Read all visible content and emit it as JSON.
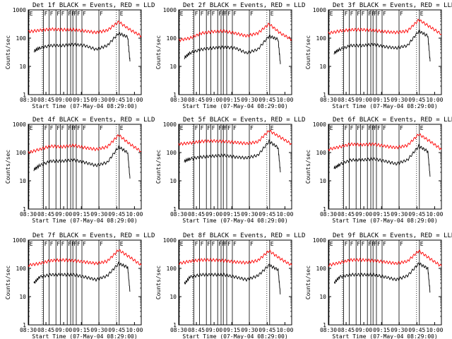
{
  "chart_data": [
    {
      "type": "line",
      "title": "Det 1f BLACK = Events, RED = LLD",
      "xlabel": "Start Time (07-May-04 08:29:00)",
      "ylabel": "Counts/sec",
      "yscale": "log",
      "ylim": [
        1,
        1000
      ],
      "xticks": [
        "08:30",
        "08:45",
        "09:00",
        "09:15",
        "09:30",
        "09:45",
        "10:00"
      ],
      "yticks": [
        "1",
        "10",
        "100",
        "1000"
      ],
      "flags": [
        "E",
        "F",
        "F",
        "F",
        "F",
        "F",
        "F",
        "F",
        "F",
        "F",
        "F",
        "E"
      ],
      "series": [
        {
          "name": "LLD",
          "color": "#ff0000",
          "x": [
            0,
            10,
            20,
            30,
            40,
            50,
            60,
            70,
            80,
            90,
            100
          ],
          "y": [
            170,
            190,
            210,
            200,
            200,
            180,
            160,
            190,
            380,
            200,
            120
          ]
        },
        {
          "name": "Events",
          "color": "#000000",
          "x": [
            5,
            10,
            20,
            30,
            40,
            50,
            60,
            70,
            80,
            88,
            90
          ],
          "y": [
            35,
            45,
            55,
            55,
            60,
            55,
            40,
            55,
            150,
            110,
            15
          ]
        }
      ]
    },
    {
      "type": "line",
      "title": "Det 2f BLACK = Events, RED = LLD",
      "xlabel": "Start Time (07-May-04 08:29:00)",
      "ylabel": "Counts/sec",
      "yscale": "log",
      "ylim": [
        1,
        1000
      ],
      "xticks": [
        "08:30",
        "08:45",
        "09:00",
        "09:15",
        "09:30",
        "09:45",
        "10:00"
      ],
      "yticks": [
        "1",
        "10",
        "100",
        "1000"
      ],
      "flags": [
        "E",
        "F",
        "F",
        "F",
        "F",
        "F",
        "F",
        "F",
        "F",
        "F",
        "F",
        "E"
      ],
      "series": [
        {
          "name": "LLD",
          "color": "#ff0000",
          "x": [
            0,
            10,
            20,
            30,
            40,
            50,
            60,
            70,
            80,
            90,
            100
          ],
          "y": [
            85,
            100,
            150,
            170,
            180,
            150,
            120,
            150,
            320,
            150,
            90
          ]
        },
        {
          "name": "Events",
          "color": "#000000",
          "x": [
            5,
            10,
            20,
            30,
            40,
            50,
            60,
            70,
            80,
            88,
            90
          ],
          "y": [
            20,
            30,
            40,
            45,
            48,
            45,
            30,
            40,
            120,
            90,
            12
          ]
        }
      ]
    },
    {
      "type": "line",
      "title": "Det 3f BLACK = Events, RED = LLD",
      "xlabel": "Start Time (07-May-04 08:29:00)",
      "ylabel": "Counts/sec",
      "yscale": "log",
      "ylim": [
        1,
        1000
      ],
      "xticks": [
        "08:30",
        "08:45",
        "09:00",
        "09:15",
        "09:30",
        "09:45",
        "10:00"
      ],
      "yticks": [
        "1",
        "10",
        "100",
        "1000"
      ],
      "flags": [
        "E",
        "F",
        "F",
        "F",
        "F",
        "F",
        "F",
        "F",
        "F",
        "F",
        "F",
        "E"
      ],
      "series": [
        {
          "name": "LLD",
          "color": "#ff0000",
          "x": [
            0,
            10,
            20,
            30,
            40,
            50,
            60,
            70,
            80,
            90,
            100
          ],
          "y": [
            150,
            180,
            200,
            200,
            190,
            170,
            160,
            180,
            450,
            250,
            140
          ]
        },
        {
          "name": "Events",
          "color": "#000000",
          "x": [
            5,
            10,
            20,
            30,
            40,
            50,
            60,
            70,
            80,
            88,
            90
          ],
          "y": [
            30,
            40,
            55,
            55,
            60,
            50,
            45,
            55,
            180,
            120,
            15
          ]
        }
      ]
    },
    {
      "type": "line",
      "title": "Det 4f BLACK = Events, RED = LLD",
      "xlabel": "Start Time (07-May-04 08:29:00)",
      "ylabel": "Counts/sec",
      "yscale": "log",
      "ylim": [
        1,
        1000
      ],
      "xticks": [
        "08:30",
        "08:45",
        "09:00",
        "09:15",
        "09:30",
        "09:45",
        "10:00"
      ],
      "yticks": [
        "1",
        "10",
        "100",
        "1000"
      ],
      "flags": [
        "E",
        "F",
        "F",
        "F",
        "F",
        "F",
        "F",
        "F",
        "F",
        "F",
        "F",
        "E"
      ],
      "series": [
        {
          "name": "LLD",
          "color": "#ff0000",
          "x": [
            0,
            10,
            20,
            30,
            40,
            50,
            60,
            70,
            80,
            90,
            100
          ],
          "y": [
            100,
            130,
            170,
            160,
            180,
            150,
            130,
            160,
            420,
            200,
            110
          ]
        },
        {
          "name": "Events",
          "color": "#000000",
          "x": [
            5,
            10,
            20,
            30,
            40,
            50,
            60,
            70,
            80,
            88,
            90
          ],
          "y": [
            25,
            35,
            50,
            50,
            55,
            45,
            35,
            45,
            160,
            100,
            12
          ]
        }
      ]
    },
    {
      "type": "line",
      "title": "Det 5f BLACK = Events, RED = LLD",
      "xlabel": "Start Time (07-May-04 08:29:00)",
      "ylabel": "Counts/sec",
      "yscale": "log",
      "ylim": [
        1,
        1000
      ],
      "xticks": [
        "08:30",
        "08:45",
        "09:00",
        "09:15",
        "09:30",
        "09:45",
        "10:00"
      ],
      "yticks": [
        "1",
        "10",
        "100",
        "1000"
      ],
      "flags": [
        "E",
        "F",
        "F",
        "F",
        "F",
        "F",
        "F",
        "F",
        "F",
        "F",
        "F",
        "E"
      ],
      "series": [
        {
          "name": "LLD",
          "color": "#ff0000",
          "x": [
            0,
            10,
            20,
            30,
            40,
            50,
            60,
            70,
            80,
            90,
            100
          ],
          "y": [
            200,
            220,
            250,
            260,
            250,
            230,
            210,
            240,
            600,
            350,
            200
          ]
        },
        {
          "name": "Events",
          "color": "#000000",
          "x": [
            5,
            10,
            20,
            30,
            40,
            50,
            60,
            70,
            80,
            88,
            90
          ],
          "y": [
            50,
            60,
            70,
            75,
            80,
            70,
            65,
            80,
            250,
            150,
            20
          ]
        }
      ]
    },
    {
      "type": "line",
      "title": "Det 6f BLACK = Events, RED = LLD",
      "xlabel": "Start Time (07-May-04 08:29:00)",
      "ylabel": "Counts/sec",
      "yscale": "log",
      "ylim": [
        1,
        1000
      ],
      "xticks": [
        "08:30",
        "08:45",
        "09:00",
        "09:15",
        "09:30",
        "09:45",
        "10:00"
      ],
      "yticks": [
        "1",
        "10",
        "100",
        "1000"
      ],
      "flags": [
        "E",
        "F",
        "F",
        "F",
        "F",
        "F",
        "F",
        "F",
        "F",
        "F",
        "F",
        "E"
      ],
      "series": [
        {
          "name": "LLD",
          "color": "#ff0000",
          "x": [
            0,
            10,
            20,
            30,
            40,
            50,
            60,
            70,
            80,
            90,
            100
          ],
          "y": [
            130,
            160,
            200,
            190,
            200,
            170,
            150,
            180,
            450,
            250,
            130
          ]
        },
        {
          "name": "Events",
          "color": "#000000",
          "x": [
            5,
            10,
            20,
            30,
            40,
            50,
            60,
            70,
            80,
            88,
            90
          ],
          "y": [
            28,
            38,
            55,
            55,
            60,
            50,
            40,
            55,
            170,
            110,
            14
          ]
        }
      ]
    },
    {
      "type": "line",
      "title": "Det 7f BLACK = Events, RED = LLD",
      "xlabel": "Start Time (07-May-04 08:29:00)",
      "ylabel": "Counts/sec",
      "yscale": "log",
      "ylim": [
        1,
        1000
      ],
      "xticks": [
        "08:30",
        "08:45",
        "09:00",
        "09:15",
        "09:30",
        "09:45",
        "10:00"
      ],
      "yticks": [
        "1",
        "10",
        "100",
        "1000"
      ],
      "flags": [
        "E",
        "F",
        "F",
        "F",
        "F",
        "F",
        "F",
        "F",
        "F",
        "F",
        "F",
        "E"
      ],
      "series": [
        {
          "name": "LLD",
          "color": "#ff0000",
          "x": [
            0,
            10,
            20,
            30,
            40,
            50,
            60,
            70,
            80,
            90,
            100
          ],
          "y": [
            130,
            150,
            190,
            200,
            190,
            170,
            150,
            180,
            450,
            250,
            130
          ]
        },
        {
          "name": "Events",
          "color": "#000000",
          "x": [
            5,
            10,
            20,
            30,
            40,
            50,
            60,
            70,
            80,
            88,
            90
          ],
          "y": [
            30,
            50,
            60,
            60,
            60,
            50,
            40,
            55,
            150,
            110,
            15
          ]
        }
      ]
    },
    {
      "type": "line",
      "title": "Det 8f BLACK = Events, RED = LLD",
      "xlabel": "Start Time (07-May-04 08:29:00)",
      "ylabel": "Counts/sec",
      "yscale": "log",
      "ylim": [
        1,
        1000
      ],
      "xticks": [
        "08:30",
        "08:45",
        "09:00",
        "09:15",
        "09:30",
        "09:45",
        "10:00"
      ],
      "yticks": [
        "1",
        "10",
        "100",
        "1000"
      ],
      "flags": [
        "E",
        "F",
        "F",
        "F",
        "F",
        "F",
        "F",
        "F",
        "F",
        "F",
        "F",
        "E"
      ],
      "series": [
        {
          "name": "LLD",
          "color": "#ff0000",
          "x": [
            0,
            10,
            20,
            30,
            40,
            50,
            60,
            70,
            80,
            90,
            100
          ],
          "y": [
            150,
            180,
            200,
            200,
            190,
            170,
            160,
            190,
            420,
            220,
            130
          ]
        },
        {
          "name": "Events",
          "color": "#000000",
          "x": [
            5,
            10,
            20,
            30,
            40,
            50,
            60,
            70,
            80,
            88,
            90
          ],
          "y": [
            28,
            50,
            60,
            60,
            60,
            50,
            40,
            55,
            130,
            90,
            12
          ]
        }
      ]
    },
    {
      "type": "line",
      "title": "Det 9f BLACK = Events, RED = LLD",
      "xlabel": "Start Time (07-May-04 08:29:00)",
      "ylabel": "Counts/sec",
      "yscale": "log",
      "ylim": [
        1,
        1000
      ],
      "xticks": [
        "08:30",
        "08:45",
        "09:00",
        "09:15",
        "09:30",
        "09:45",
        "10:00"
      ],
      "yticks": [
        "1",
        "10",
        "100",
        "1000"
      ],
      "flags": [
        "E",
        "F",
        "F",
        "F",
        "F",
        "F",
        "F",
        "F",
        "F",
        "F",
        "F",
        "E"
      ],
      "series": [
        {
          "name": "LLD",
          "color": "#ff0000",
          "x": [
            0,
            10,
            20,
            30,
            40,
            50,
            60,
            70,
            80,
            90,
            100
          ],
          "y": [
            130,
            160,
            200,
            200,
            190,
            170,
            150,
            180,
            420,
            220,
            120
          ]
        },
        {
          "name": "Events",
          "color": "#000000",
          "x": [
            5,
            10,
            20,
            30,
            40,
            50,
            60,
            70,
            80,
            88,
            90
          ],
          "y": [
            30,
            50,
            60,
            60,
            60,
            50,
            40,
            55,
            150,
            100,
            14
          ]
        }
      ]
    }
  ]
}
